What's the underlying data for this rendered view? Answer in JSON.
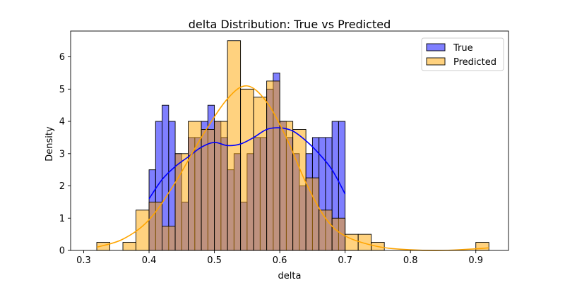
{
  "chart_data": {
    "type": "histogram",
    "title": "delta Distribution: True vs Predicted",
    "xlabel": "delta",
    "ylabel": "Density",
    "xlim": [
      0.28,
      0.95
    ],
    "ylim": [
      0,
      6.8
    ],
    "xticks": [
      "0.3",
      "0.4",
      "0.5",
      "0.6",
      "0.7",
      "0.8",
      "0.9"
    ],
    "yticks": [
      "0",
      "1",
      "2",
      "3",
      "4",
      "5",
      "6"
    ],
    "grid": false,
    "legend_position": "top-right",
    "colors": {
      "true_fill": "#7777f2",
      "true_line": "#0000ff",
      "pred_fill": "#ffd280",
      "pred_line": "#ffa500",
      "overlap": "#c09060"
    },
    "series": [
      {
        "name": "True",
        "kde_color": "#0000ff",
        "bin_width": 0.01,
        "bins": [
          {
            "x": 0.4,
            "density": 2.5
          },
          {
            "x": 0.41,
            "density": 4.0
          },
          {
            "x": 0.42,
            "density": 4.5
          },
          {
            "x": 0.43,
            "density": 4.0
          },
          {
            "x": 0.44,
            "density": 3.0
          },
          {
            "x": 0.45,
            "density": 1.5
          },
          {
            "x": 0.46,
            "density": 3.5
          },
          {
            "x": 0.47,
            "density": 3.5
          },
          {
            "x": 0.48,
            "density": 4.0
          },
          {
            "x": 0.49,
            "density": 4.5
          },
          {
            "x": 0.5,
            "density": 4.0
          },
          {
            "x": 0.51,
            "density": 3.5
          },
          {
            "x": 0.52,
            "density": 2.5
          },
          {
            "x": 0.53,
            "density": 3.0
          },
          {
            "x": 0.54,
            "density": 1.5
          },
          {
            "x": 0.55,
            "density": 3.0
          },
          {
            "x": 0.56,
            "density": 3.5
          },
          {
            "x": 0.57,
            "density": 3.5
          },
          {
            "x": 0.58,
            "density": 5.0
          },
          {
            "x": 0.59,
            "density": 5.5
          },
          {
            "x": 0.6,
            "density": 4.0
          },
          {
            "x": 0.61,
            "density": 3.5
          },
          {
            "x": 0.62,
            "density": 3.0
          },
          {
            "x": 0.63,
            "density": 2.0
          },
          {
            "x": 0.64,
            "density": 3.0
          },
          {
            "x": 0.65,
            "density": 3.5
          },
          {
            "x": 0.66,
            "density": 3.5
          },
          {
            "x": 0.67,
            "density": 3.5
          },
          {
            "x": 0.68,
            "density": 4.0
          },
          {
            "x": 0.69,
            "density": 4.0
          }
        ],
        "kde": [
          [
            0.4,
            1.6
          ],
          [
            0.42,
            2.2
          ],
          [
            0.44,
            2.6
          ],
          [
            0.46,
            2.9
          ],
          [
            0.48,
            3.2
          ],
          [
            0.5,
            3.35
          ],
          [
            0.52,
            3.25
          ],
          [
            0.54,
            3.3
          ],
          [
            0.56,
            3.5
          ],
          [
            0.58,
            3.75
          ],
          [
            0.6,
            3.8
          ],
          [
            0.62,
            3.7
          ],
          [
            0.64,
            3.4
          ],
          [
            0.66,
            3.0
          ],
          [
            0.68,
            2.5
          ],
          [
            0.7,
            1.75
          ]
        ]
      },
      {
        "name": "Predicted",
        "kde_color": "#ffa500",
        "bin_width": 0.02,
        "bins": [
          {
            "x": 0.32,
            "density": 0.25
          },
          {
            "x": 0.34,
            "density": 0.0
          },
          {
            "x": 0.36,
            "density": 0.25
          },
          {
            "x": 0.38,
            "density": 1.25
          },
          {
            "x": 0.4,
            "density": 1.5
          },
          {
            "x": 0.42,
            "density": 0.75
          },
          {
            "x": 0.44,
            "density": 3.0
          },
          {
            "x": 0.46,
            "density": 4.0
          },
          {
            "x": 0.48,
            "density": 3.75
          },
          {
            "x": 0.5,
            "density": 4.0
          },
          {
            "x": 0.52,
            "density": 6.5
          },
          {
            "x": 0.54,
            "density": 5.0
          },
          {
            "x": 0.56,
            "density": 4.75
          },
          {
            "x": 0.58,
            "density": 5.25
          },
          {
            "x": 0.6,
            "density": 4.0
          },
          {
            "x": 0.62,
            "density": 3.75
          },
          {
            "x": 0.64,
            "density": 2.25
          },
          {
            "x": 0.66,
            "density": 1.25
          },
          {
            "x": 0.68,
            "density": 1.0
          },
          {
            "x": 0.7,
            "density": 0.5
          },
          {
            "x": 0.72,
            "density": 0.5
          },
          {
            "x": 0.74,
            "density": 0.25
          },
          {
            "x": 0.9,
            "density": 0.25
          }
        ],
        "kde": [
          [
            0.32,
            0.1
          ],
          [
            0.36,
            0.35
          ],
          [
            0.4,
            0.95
          ],
          [
            0.44,
            2.1
          ],
          [
            0.48,
            3.5
          ],
          [
            0.52,
            4.7
          ],
          [
            0.55,
            5.1
          ],
          [
            0.58,
            4.6
          ],
          [
            0.61,
            3.5
          ],
          [
            0.64,
            2.1
          ],
          [
            0.67,
            1.0
          ],
          [
            0.7,
            0.45
          ],
          [
            0.75,
            0.12
          ],
          [
            0.8,
            0.02
          ],
          [
            0.85,
            0.0
          ],
          [
            0.9,
            0.05
          ],
          [
            0.92,
            0.08
          ]
        ]
      }
    ]
  }
}
